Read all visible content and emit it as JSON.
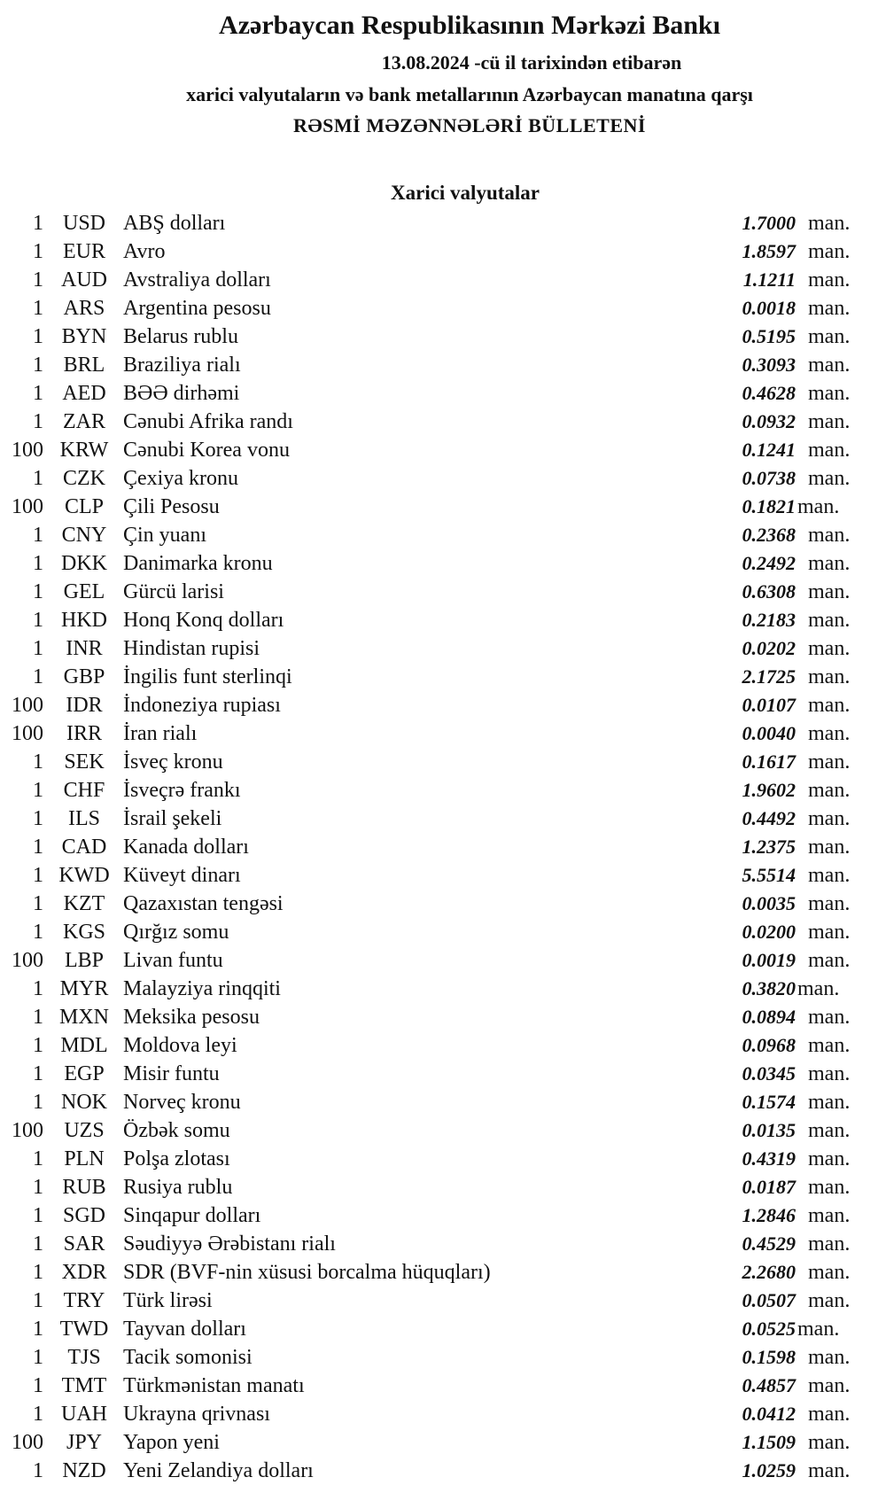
{
  "header": {
    "title": "Azərbaycan Respublikasının Mərkəzi Bankı",
    "date_line": "13.08.2024 -cü il tarixindən etibarən",
    "subtitle": "xarici valyutaların və bank metallarının Azərbaycan manatına qarşı",
    "bulletin": "RƏSMİ MƏZƏNNƏLƏRİ BÜLLETENİ"
  },
  "section_title": "Xarici valyutalar",
  "unit": "man.",
  "rates": [
    {
      "qty": "1",
      "code": "USD",
      "name": "ABŞ dolları",
      "value": "1.7000"
    },
    {
      "qty": "1",
      "code": "EUR",
      "name": "Avro",
      "value": "1.8597"
    },
    {
      "qty": "1",
      "code": "AUD",
      "name": "Avstraliya dolları",
      "value": "1.1211"
    },
    {
      "qty": "1",
      "code": "ARS",
      "name": "Argentina pesosu",
      "value": "0.0018"
    },
    {
      "qty": "1",
      "code": "BYN",
      "name": "Belarus rublu",
      "value": "0.5195"
    },
    {
      "qty": "1",
      "code": "BRL",
      "name": "Braziliya rialı",
      "value": "0.3093"
    },
    {
      "qty": "1",
      "code": "AED",
      "name": "BƏƏ dirhəmi",
      "value": "0.4628"
    },
    {
      "qty": "1",
      "code": "ZAR",
      "name": "Cənubi Afrika randı",
      "value": "0.0932"
    },
    {
      "qty": "100",
      "code": "KRW",
      "name": "Cənubi Korea vonu",
      "value": "0.1241"
    },
    {
      "qty": "1",
      "code": "CZK",
      "name": "Çexiya kronu",
      "value": "0.0738"
    },
    {
      "qty": "100",
      "code": "CLP",
      "name": "Çili Pesosu",
      "value": "0.1821"
    },
    {
      "qty": "1",
      "code": "CNY",
      "name": "Çin yuanı",
      "value": "0.2368"
    },
    {
      "qty": "1",
      "code": "DKK",
      "name": "Danimarka kronu",
      "value": "0.2492"
    },
    {
      "qty": "1",
      "code": "GEL",
      "name": "Gürcü larisi",
      "value": "0.6308"
    },
    {
      "qty": "1",
      "code": "HKD",
      "name": "Honq Konq dolları",
      "value": "0.2183"
    },
    {
      "qty": "1",
      "code": "INR",
      "name": "Hindistan rupisi",
      "value": "0.0202"
    },
    {
      "qty": "1",
      "code": "GBP",
      "name": "İngilis funt sterlinqi",
      "value": "2.1725"
    },
    {
      "qty": "100",
      "code": "IDR",
      "name": "İndoneziya rupiası",
      "value": "0.0107"
    },
    {
      "qty": "100",
      "code": "IRR",
      "name": "İran rialı",
      "value": "0.0040"
    },
    {
      "qty": "1",
      "code": "SEK",
      "name": "İsveç kronu",
      "value": "0.1617"
    },
    {
      "qty": "1",
      "code": "CHF",
      "name": "İsveçrə frankı",
      "value": "1.9602"
    },
    {
      "qty": "1",
      "code": "ILS",
      "name": "İsrail şekeli",
      "value": "0.4492"
    },
    {
      "qty": "1",
      "code": "CAD",
      "name": "Kanada dolları",
      "value": "1.2375"
    },
    {
      "qty": "1",
      "code": "KWD",
      "name": "Küveyt dinarı",
      "value": "5.5514"
    },
    {
      "qty": "1",
      "code": "KZT",
      "name": "Qazaxıstan tengəsi",
      "value": "0.0035"
    },
    {
      "qty": "1",
      "code": "KGS",
      "name": "Qırğız somu",
      "value": "0.0200"
    },
    {
      "qty": "100",
      "code": "LBP",
      "name": "Livan funtu",
      "value": "0.0019"
    },
    {
      "qty": "1",
      "code": "MYR",
      "name": "Malayziya rinqqiti",
      "value": "0.3820"
    },
    {
      "qty": "1",
      "code": "MXN",
      "name": "Meksika pesosu",
      "value": "0.0894"
    },
    {
      "qty": "1",
      "code": "MDL",
      "name": "Moldova leyi",
      "value": "0.0968"
    },
    {
      "qty": "1",
      "code": "EGP",
      "name": "Misir funtu",
      "value": "0.0345"
    },
    {
      "qty": "1",
      "code": "NOK",
      "name": "Norveç kronu",
      "value": "0.1574"
    },
    {
      "qty": "100",
      "code": "UZS",
      "name": "Özbək somu",
      "value": "0.0135"
    },
    {
      "qty": "1",
      "code": "PLN",
      "name": "Polşa zlotası",
      "value": "0.4319"
    },
    {
      "qty": "1",
      "code": "RUB",
      "name": "Rusiya rublu",
      "value": "0.0187"
    },
    {
      "qty": "1",
      "code": "SGD",
      "name": "Sinqapur dolları",
      "value": "1.2846"
    },
    {
      "qty": "1",
      "code": "SAR",
      "name": "Səudiyyə Ərəbistanı rialı",
      "value": "0.4529"
    },
    {
      "qty": "1",
      "code": "XDR",
      "name": "SDR (BVF-nin xüsusi borcalma hüquqları)",
      "value": "2.2680"
    },
    {
      "qty": "1",
      "code": "TRY",
      "name": "Türk lirəsi",
      "value": "0.0507"
    },
    {
      "qty": "1",
      "code": "TWD",
      "name": "Tayvan dolları",
      "value": "0.0525"
    },
    {
      "qty": "1",
      "code": "TJS",
      "name": "Tacik somonisi",
      "value": "0.1598"
    },
    {
      "qty": "1",
      "code": "TMT",
      "name": "Türkmənistan manatı",
      "value": "0.4857"
    },
    {
      "qty": "1",
      "code": "UAH",
      "name": "Ukrayna qrivnası",
      "value": "0.0412"
    },
    {
      "qty": "100",
      "code": "JPY",
      "name": "Yapon yeni",
      "value": "1.1509"
    },
    {
      "qty": "1",
      "code": "NZD",
      "name": "Yeni Zelandiya dolları",
      "value": "1.0259"
    }
  ]
}
